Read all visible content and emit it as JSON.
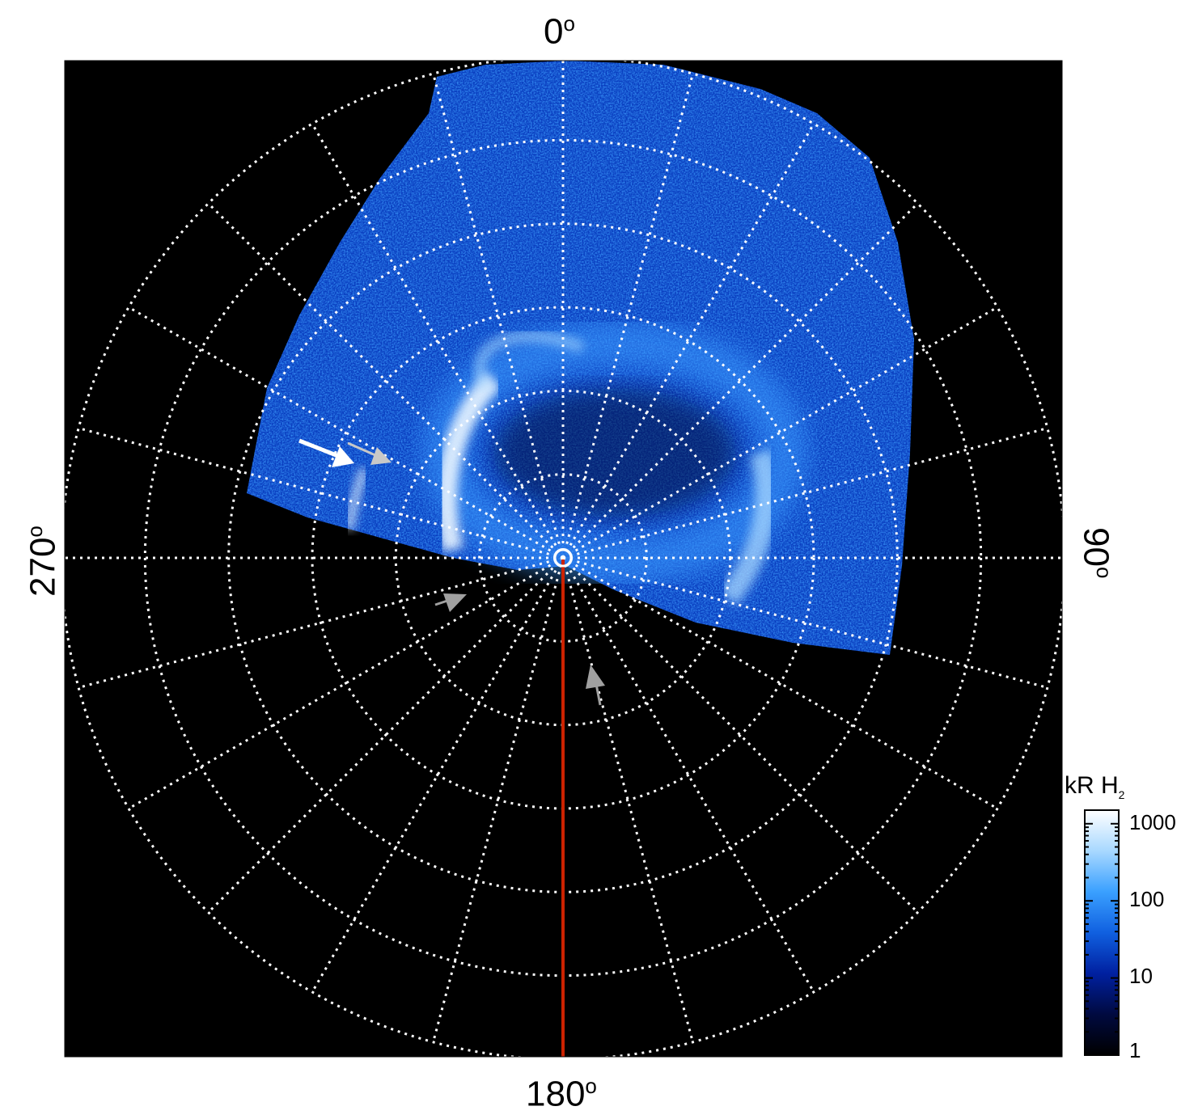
{
  "axis_labels": {
    "top": "0",
    "right": "90",
    "bottom": "180",
    "left": "270",
    "degree_symbol": "o"
  },
  "colorbar": {
    "title_main": "kR H",
    "title_sub": "2",
    "ticks": [
      "1000",
      "100",
      "10",
      "1"
    ],
    "tick_values": [
      1000,
      100,
      10,
      1
    ],
    "scale": "log",
    "range": [
      1,
      1500
    ],
    "colors": [
      "#000000",
      "#000a40",
      "#0020a0",
      "#1060e0",
      "#3aa0ff",
      "#a8d8ff",
      "#ffffff"
    ]
  },
  "plot": {
    "background": "#000000",
    "grid_color": "#ffffff",
    "meridian_color": "#cc2200",
    "longitude_spacing_deg": 15,
    "latitude_rings": 6,
    "aurora_colors": {
      "bright": "#e8f4ff",
      "mid": "#3a9aff",
      "dim": "#0a3fc0"
    }
  },
  "annotations": {
    "arrows": [
      {
        "name": "white-arrow",
        "color": "#ffffff"
      },
      {
        "name": "grey-arrow-left",
        "color": "#c8c8c8"
      },
      {
        "name": "grey-arrow-lower-left",
        "color": "#a0a0a0"
      },
      {
        "name": "grey-arrow-lower-right",
        "color": "#a0a0a0"
      }
    ]
  }
}
